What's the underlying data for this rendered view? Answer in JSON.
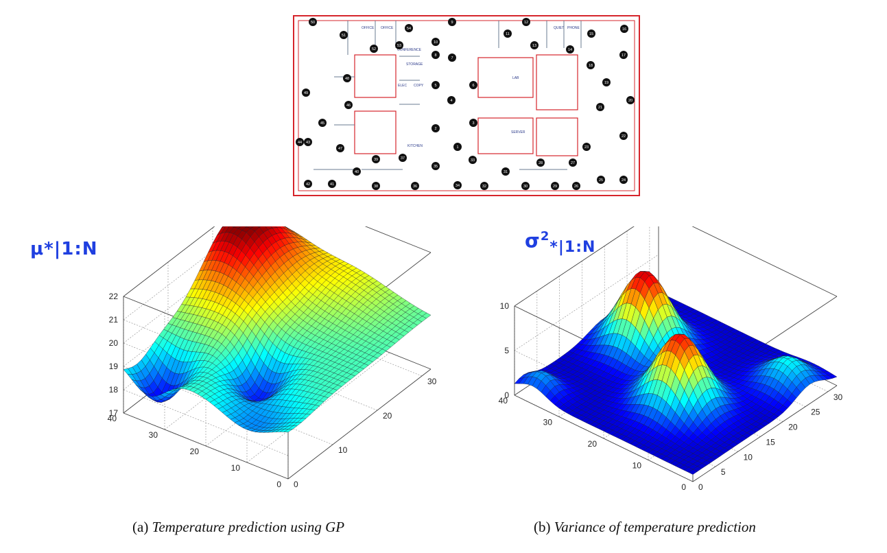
{
  "floor_plan": {
    "room_labels": [
      "OFFICE",
      "OFFICE",
      "CONFERENCE",
      "STORAGE",
      "ELEC",
      "COPY",
      "KITCHEN",
      "LAB",
      "SERVER",
      "QUIET",
      "PHONE"
    ],
    "sensor_ids": [
      "1",
      "2",
      "3",
      "4",
      "5",
      "6",
      "7",
      "8",
      "9",
      "10",
      "11",
      "12",
      "13",
      "14",
      "15",
      "16",
      "17",
      "18",
      "19",
      "20",
      "21",
      "22",
      "23",
      "24",
      "25",
      "26",
      "27",
      "28",
      "29",
      "30",
      "31",
      "32",
      "33",
      "34",
      "35",
      "36",
      "37",
      "38",
      "39",
      "40",
      "41",
      "42",
      "43",
      "44",
      "45",
      "46",
      "47",
      "48",
      "49",
      "50",
      "51",
      "52",
      "53",
      "54"
    ]
  },
  "annotations": {
    "left": "μ*|1:N",
    "right_base": "σ",
    "right_sup": "2",
    "right_sub": "*|1:N"
  },
  "captions": {
    "a_tag": "(a)",
    "a_text": "Temperature prediction using GP",
    "b_tag": "(b)",
    "b_text": "Variance of temperature prediction"
  },
  "chart_data": [
    {
      "type": "surface",
      "title": "",
      "x_ticks": [
        0,
        10,
        20,
        30
      ],
      "y_ticks": [
        0,
        10,
        20,
        30,
        40
      ],
      "z_ticks": [
        17,
        18,
        19,
        20,
        21,
        22
      ],
      "xlim": [
        0,
        32
      ],
      "ylim": [
        0,
        40
      ],
      "zlim": [
        17,
        22
      ],
      "grid": true,
      "colormap": "jet",
      "description_of_shape": "smooth temperature field, minima about 17.5 near y=30-38, x=0-8 and near x=5-15 around y=20, peak about 22 near x=20-28, y=35-40"
    },
    {
      "type": "surface",
      "title": "",
      "x_ticks": [
        0,
        5,
        10,
        15,
        20,
        25,
        30
      ],
      "y_ticks": [
        0,
        10,
        20,
        30,
        40
      ],
      "z_ticks": [
        0,
        5,
        10
      ],
      "xlim": [
        0,
        32
      ],
      "ylim": [
        0,
        40
      ],
      "zlim": [
        0,
        10
      ],
      "grid": true,
      "colormap": "jet",
      "description_of_shape": "mostly near 0 with two ridges of variance about 8-9, one near x=15-25, y=28-35 and one near x=5-20, y=10-20"
    }
  ]
}
